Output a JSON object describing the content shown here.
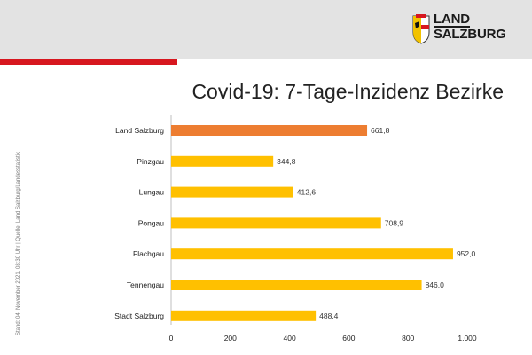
{
  "logo": {
    "line1": "LAND",
    "line2": "SALZBURG"
  },
  "side_note": "Stand: 04. November 2021, 08:30 Uhr | Quelle: Land Salzburg/Landesstatistik",
  "colors": {
    "highlight": "#ed7d31",
    "bar": "#ffc000",
    "accent": "#d7171f"
  },
  "chart_data": {
    "type": "bar",
    "orientation": "horizontal",
    "title": "Covid-19: 7-Tage-Inzidenz Bezirke",
    "categories": [
      "Land Salzburg",
      "Pinzgau",
      "Lungau",
      "Pongau",
      "Flachgau",
      "Tennengau",
      "Stadt Salzburg"
    ],
    "values": [
      661.8,
      344.8,
      412.6,
      708.9,
      952.0,
      846.0,
      488.4
    ],
    "value_labels": [
      "661,8",
      "344,8",
      "412,6",
      "708,9",
      "952,0",
      "846,0",
      "488,4"
    ],
    "highlight_index": 0,
    "xlim": [
      0,
      1000
    ],
    "xticks": [
      0,
      200,
      400,
      600,
      800,
      1000
    ],
    "xtick_labels": [
      "0",
      "200",
      "400",
      "600",
      "800",
      "1.000"
    ],
    "xlabel": "",
    "ylabel": "",
    "grid": false
  }
}
